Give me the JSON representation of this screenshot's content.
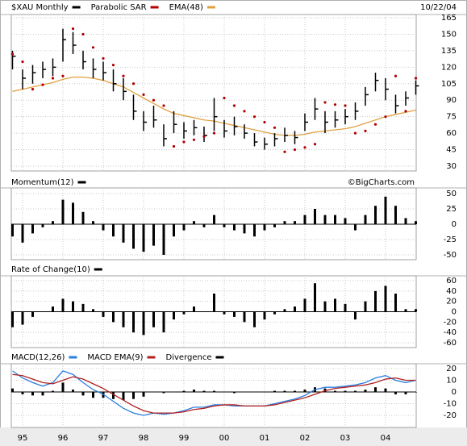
{
  "chart_data": [
    {
      "type": "ohlc",
      "date": "10/22/04",
      "credit": "©BigCharts.com",
      "x": [
        1994.75,
        1995,
        1995.25,
        1995.5,
        1995.75,
        1996,
        1996.25,
        1996.5,
        1996.75,
        1997,
        1997.25,
        1997.5,
        1997.75,
        1998,
        1998.25,
        1998.5,
        1998.75,
        1999,
        1999.25,
        1999.5,
        1999.75,
        2000,
        2000.25,
        2000.5,
        2000.75,
        2001,
        2001.25,
        2001.5,
        2001.75,
        2002,
        2002.25,
        2002.5,
        2002.75,
        2003,
        2003.25,
        2003.5,
        2003.75,
        2004,
        2004.25,
        2004.5,
        2004.75
      ],
      "series": [
        {
          "name": "$XAU Monthly",
          "color": "#000000",
          "high": [
            135,
            118,
            122,
            125,
            128,
            155,
            152,
            135,
            128,
            125,
            118,
            110,
            95,
            80,
            85,
            68,
            80,
            70,
            72,
            66,
            92,
            72,
            75,
            68,
            60,
            56,
            60,
            65,
            62,
            78,
            92,
            80,
            80,
            82,
            88,
            102,
            115,
            110,
            95,
            98,
            108
          ],
          "low": [
            118,
            100,
            105,
            110,
            112,
            125,
            132,
            118,
            110,
            108,
            98,
            90,
            72,
            62,
            65,
            48,
            60,
            55,
            58,
            52,
            62,
            56,
            58,
            55,
            48,
            45,
            48,
            52,
            50,
            62,
            72,
            60,
            65,
            68,
            72,
            85,
            98,
            90,
            78,
            85,
            95
          ],
          "values": [
            130,
            110,
            115,
            118,
            120,
            145,
            140,
            125,
            118,
            115,
            105,
            98,
            80,
            70,
            72,
            55,
            68,
            62,
            65,
            58,
            75,
            62,
            66,
            60,
            52,
            50,
            55,
            58,
            56,
            70,
            82,
            70,
            72,
            75,
            80,
            95,
            108,
            100,
            85,
            92,
            103
          ]
        },
        {
          "name": "Parabolic SAR",
          "color": "#b00000",
          "values": [
            132,
            125,
            100,
            104,
            110,
            112,
            155,
            150,
            138,
            128,
            122,
            112,
            105,
            95,
            90,
            85,
            48,
            52,
            54,
            57,
            60,
            92,
            85,
            80,
            75,
            70,
            65,
            43,
            45,
            47,
            50,
            88,
            86,
            85,
            60,
            62,
            68,
            75,
            112,
            80,
            110
          ]
        },
        {
          "name": "EMA(48)",
          "color": "#e0a040",
          "values": [
            98,
            100,
            102,
            104,
            106,
            109,
            111,
            111,
            110,
            108,
            105,
            102,
            97,
            92,
            87,
            82,
            78,
            76,
            74,
            72,
            71,
            69,
            67,
            65,
            63,
            61,
            59,
            58,
            58,
            59,
            61,
            62,
            63,
            64,
            66,
            69,
            72,
            75,
            77,
            79,
            81
          ]
        }
      ],
      "ylim": [
        30,
        165
      ],
      "yticks": [
        30,
        45,
        60,
        75,
        90,
        105,
        120,
        135,
        150,
        165
      ]
    },
    {
      "type": "bar",
      "x": [
        1994.75,
        1995,
        1995.25,
        1995.5,
        1995.75,
        1996,
        1996.25,
        1996.5,
        1996.75,
        1997,
        1997.25,
        1997.5,
        1997.75,
        1998,
        1998.25,
        1998.5,
        1998.75,
        1999,
        1999.25,
        1999.5,
        1999.75,
        2000,
        2000.25,
        2000.5,
        2000.75,
        2001,
        2001.25,
        2001.5,
        2001.75,
        2002,
        2002.25,
        2002.5,
        2002.75,
        2003,
        2003.25,
        2003.5,
        2003.75,
        2004,
        2004.25,
        2004.5,
        2004.75
      ],
      "series": [
        {
          "name": "Momentum(12)",
          "color": "#000000",
          "values": [
            -20,
            -30,
            -15,
            -5,
            5,
            40,
            35,
            20,
            5,
            -10,
            -20,
            -30,
            -40,
            -45,
            -35,
            -50,
            -20,
            -10,
            5,
            -5,
            15,
            -5,
            -10,
            -15,
            -20,
            -10,
            -5,
            5,
            5,
            15,
            25,
            15,
            15,
            10,
            -10,
            15,
            30,
            45,
            30,
            10,
            5
          ]
        }
      ],
      "ylim": [
        -50,
        50
      ],
      "yticks": [
        -50,
        -25,
        0,
        25,
        50
      ]
    },
    {
      "type": "bar",
      "x": [
        1994.75,
        1995,
        1995.25,
        1995.5,
        1995.75,
        1996,
        1996.25,
        1996.5,
        1996.75,
        1997,
        1997.25,
        1997.5,
        1997.75,
        1998,
        1998.25,
        1998.5,
        1998.75,
        1999,
        1999.25,
        1999.5,
        1999.75,
        2000,
        2000.25,
        2000.5,
        2000.75,
        2001,
        2001.25,
        2001.5,
        2001.75,
        2002,
        2002.25,
        2002.5,
        2002.75,
        2003,
        2003.25,
        2003.5,
        2003.75,
        2004,
        2004.25,
        2004.5,
        2004.75
      ],
      "series": [
        {
          "name": "Rate of Change(10)",
          "color": "#000000",
          "values": [
            -30,
            -25,
            -10,
            0,
            10,
            25,
            20,
            15,
            5,
            -10,
            -20,
            -30,
            -40,
            -45,
            -30,
            -40,
            -15,
            -5,
            10,
            0,
            35,
            -5,
            -10,
            -20,
            -30,
            -15,
            -5,
            5,
            10,
            25,
            55,
            20,
            25,
            15,
            -15,
            20,
            40,
            50,
            35,
            5,
            5
          ]
        }
      ],
      "ylim": [
        -60,
        60
      ],
      "yticks": [
        -60,
        -40,
        -20,
        0,
        20,
        40,
        60
      ]
    },
    {
      "type": "macd",
      "x": [
        1994.75,
        1995,
        1995.25,
        1995.5,
        1995.75,
        1996,
        1996.25,
        1996.5,
        1996.75,
        1997,
        1997.25,
        1997.5,
        1997.75,
        1998,
        1998.25,
        1998.5,
        1998.75,
        1999,
        1999.25,
        1999.5,
        1999.75,
        2000,
        2000.25,
        2000.5,
        2000.75,
        2001,
        2001.25,
        2001.5,
        2001.75,
        2002,
        2002.25,
        2002.5,
        2002.75,
        2003,
        2003.25,
        2003.5,
        2003.75,
        2004,
        2004.25,
        2004.5,
        2004.75
      ],
      "series": [
        {
          "name": "MACD(12,26)",
          "color": "#2a7de1",
          "values": [
            18,
            12,
            8,
            5,
            8,
            18,
            15,
            8,
            2,
            -2,
            -8,
            -14,
            -18,
            -20,
            -18,
            -19,
            -18,
            -16,
            -13,
            -13,
            -11,
            -11,
            -12,
            -12,
            -12,
            -12,
            -10,
            -8,
            -6,
            -3,
            2,
            4,
            4,
            5,
            6,
            8,
            12,
            14,
            10,
            8,
            10
          ]
        },
        {
          "name": "MACD EMA(9)",
          "color": "#b02020",
          "values": [
            15,
            14,
            11,
            8,
            7,
            10,
            13,
            11,
            7,
            3,
            -2,
            -7,
            -12,
            -16,
            -18,
            -18,
            -18,
            -17,
            -15,
            -14,
            -12,
            -11,
            -11,
            -12,
            -12,
            -12,
            -11,
            -9,
            -7,
            -5,
            -2,
            1,
            3,
            4,
            5,
            6,
            8,
            11,
            12,
            10,
            10
          ]
        },
        {
          "name": "Divergence",
          "color": "#000000",
          "values": [
            3,
            -2,
            -3,
            -3,
            1,
            8,
            2,
            -3,
            -5,
            -5,
            -6,
            -7,
            -6,
            -4,
            0,
            -1,
            0,
            1,
            2,
            1,
            1,
            0,
            -1,
            0,
            0,
            0,
            1,
            1,
            1,
            2,
            4,
            3,
            1,
            1,
            1,
            2,
            4,
            3,
            -2,
            -2,
            0
          ]
        }
      ],
      "ylim": [
        -20,
        20
      ],
      "yticks": [
        -20,
        -10,
        0,
        10,
        20
      ],
      "xticks": [
        {
          "value": 1995,
          "label": "95"
        },
        {
          "value": 1996,
          "label": "96"
        },
        {
          "value": 1997,
          "label": "97"
        },
        {
          "value": 1998,
          "label": "98"
        },
        {
          "value": 1999,
          "label": "99"
        },
        {
          "value": 2000,
          "label": "00"
        },
        {
          "value": 2001,
          "label": "01"
        },
        {
          "value": 2002,
          "label": "02"
        },
        {
          "value": 2003,
          "label": "03"
        },
        {
          "value": 2004,
          "label": "04"
        }
      ]
    }
  ]
}
